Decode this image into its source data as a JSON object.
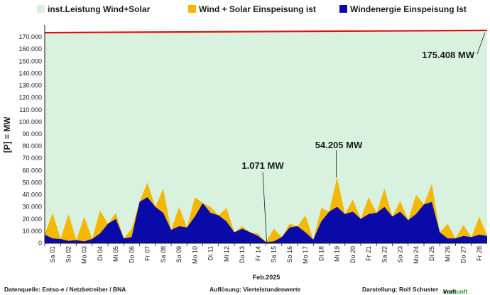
{
  "legend": [
    {
      "label": "inst.Leistung Wind+Solar",
      "color": "#d9f2e0"
    },
    {
      "label": "Wind + Solar Einspeisung ist",
      "color": "#f5b700"
    },
    {
      "label": "Windenergie Einspeisung Ist",
      "color": "#0a0aa8"
    }
  ],
  "footer": {
    "source": "Datenquelle:  Entso-e  / Netzbetreiber / BNA",
    "resolution": "Auflösung: Viertelstundenwerte",
    "author": "Darstellung:  Rolf Schuster",
    "brand_a": "Vernunft",
    "brand_b": "kraft"
  },
  "chart_data": {
    "type": "area",
    "title": "",
    "ylabel": "[P] =   MW",
    "xlabel": "Feb.2025",
    "ylim": [
      0,
      180000
    ],
    "yticks": [
      0,
      10000,
      20000,
      30000,
      40000,
      50000,
      60000,
      70000,
      80000,
      90000,
      100000,
      110000,
      120000,
      130000,
      140000,
      150000,
      160000,
      170000
    ],
    "ytick_labels": [
      "0",
      "10.000",
      "20.000",
      "30.000",
      "40.000",
      "50.000",
      "60.000",
      "70.000",
      "80.000",
      "90.000",
      "100.000",
      "110.000",
      "120.000",
      "130.000",
      "140.000",
      "150.000",
      "160.000",
      "170.000"
    ],
    "xlim": [
      0,
      28
    ],
    "x_categories": [
      "Sa 01",
      "So 02",
      "Mo 03",
      "Di 04",
      "Mi 05",
      "Do 06",
      "Fr 07",
      "Sa 08",
      "So 09",
      "Mo 10",
      "Di 11",
      "Mi 12",
      "Do 13",
      "Fr 14",
      "Sa 15",
      "So 16",
      "Mo 17",
      "Di 18",
      "Mi 19",
      "Do 20",
      "Fr 21",
      "Sa 22",
      "So 23",
      "Mo 24",
      "Di 25",
      "Mi 26",
      "Do 27",
      "Fr 28"
    ],
    "grid": "horizontal dashed",
    "legend_position": "top",
    "series": [
      {
        "name": "inst.Leistung Wind+Solar",
        "kind": "area",
        "color": "#d9f2e0",
        "line_color": "#e01010",
        "x": [
          0,
          28
        ],
        "y": [
          173500,
          175408
        ]
      },
      {
        "name": "Wind + Solar Einspeisung ist",
        "kind": "area",
        "color": "#f5b700",
        "x": [
          0,
          0.5,
          1,
          1.5,
          2,
          2.5,
          3,
          3.5,
          4,
          4.5,
          5,
          5.5,
          6,
          6.5,
          7,
          7.5,
          8,
          8.5,
          9,
          9.5,
          10,
          10.5,
          11,
          11.5,
          12,
          12.5,
          13,
          13.5,
          14,
          14.5,
          15,
          15.5,
          16,
          16.5,
          17,
          17.5,
          18,
          18.5,
          19,
          19.5,
          20,
          20.5,
          21,
          21.5,
          22,
          22.5,
          23,
          23.5,
          24,
          24.5,
          25,
          25.5,
          26,
          26.5,
          27,
          27.5,
          28
        ],
        "y": [
          7000,
          25000,
          3500,
          24000,
          2500,
          22000,
          3500,
          27000,
          16000,
          25000,
          4000,
          12000,
          34000,
          50000,
          30000,
          45000,
          11000,
          30000,
          13000,
          38000,
          33000,
          30000,
          23000,
          29000,
          9000,
          14000,
          9000,
          8000,
          1071,
          12000,
          5000,
          16000,
          14000,
          23000,
          3000,
          29000,
          26000,
          54205,
          24000,
          36000,
          20000,
          38000,
          25000,
          45000,
          22000,
          35000,
          19000,
          40000,
          32000,
          49000,
          9000,
          16000,
          4000,
          15000,
          5000,
          22000,
          6000
        ]
      },
      {
        "name": "Windenergie Einspeisung Ist",
        "kind": "area",
        "color": "#0a0aa8",
        "x": [
          0,
          0.5,
          1,
          1.5,
          2,
          2.5,
          3,
          3.5,
          4,
          4.5,
          5,
          5.5,
          6,
          6.5,
          7,
          7.5,
          8,
          8.5,
          9,
          9.5,
          10,
          10.5,
          11,
          11.5,
          12,
          12.5,
          13,
          13.5,
          14,
          14.5,
          15,
          15.5,
          16,
          16.5,
          17,
          17.5,
          18,
          18.5,
          19,
          19.5,
          20,
          20.5,
          21,
          21.5,
          22,
          22.5,
          23,
          23.5,
          24,
          24.5,
          25,
          25.5,
          26,
          26.5,
          27,
          27.5,
          28
        ],
        "y": [
          7000,
          4000,
          3500,
          2000,
          2500,
          1500,
          3500,
          8000,
          16000,
          20000,
          4000,
          5000,
          34000,
          38000,
          30000,
          25000,
          11000,
          14000,
          13000,
          22000,
          33000,
          25000,
          23000,
          18000,
          9000,
          12000,
          9000,
          6000,
          1071,
          1500,
          5000,
          13000,
          14000,
          9000,
          3000,
          18000,
          26000,
          30000,
          24000,
          26000,
          20000,
          24000,
          25000,
          30000,
          22000,
          26000,
          19000,
          24000,
          32000,
          34000,
          9000,
          4000,
          4000,
          6000,
          5000,
          7000,
          6000
        ]
      }
    ],
    "annotations": [
      {
        "text": "175.408 MW",
        "x": 28,
        "y": 175408
      },
      {
        "text": "54.205 MW",
        "x": 18.5,
        "y": 54205
      },
      {
        "text": "1.071 MW",
        "x": 14,
        "y": 1071
      }
    ]
  }
}
